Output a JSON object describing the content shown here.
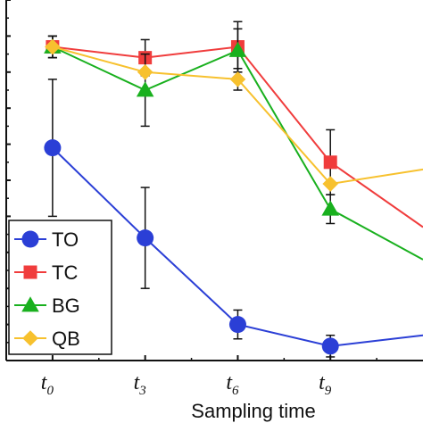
{
  "chart_data": {
    "type": "line",
    "title": "",
    "xlabel": "Sampling time",
    "ylabel": "",
    "categories": [
      {
        "main": "t",
        "sub": "0"
      },
      {
        "main": "t",
        "sub": "3"
      },
      {
        "main": "t",
        "sub": "6"
      },
      {
        "main": "t",
        "sub": "9"
      }
    ],
    "x": [
      0,
      3,
      6,
      9,
      12
    ],
    "xlim": [
      -1.5,
      12
    ],
    "ylim": [
      0,
      100
    ],
    "grid": false,
    "legend_position": "bottom-left",
    "series": [
      {
        "name": "TO",
        "color": "#2b3fd6",
        "marker": "circle",
        "values": [
          59,
          34,
          10,
          4,
          7
        ],
        "errors": [
          19,
          14,
          4,
          3,
          0
        ]
      },
      {
        "name": "TC",
        "color": "#f03c3c",
        "marker": "square",
        "values": [
          87,
          84,
          87,
          55,
          37
        ],
        "errors": [
          3,
          5,
          7,
          9,
          0
        ]
      },
      {
        "name": "BG",
        "color": "#19b01e",
        "marker": "triangle",
        "values": [
          87,
          75,
          86,
          42,
          28
        ],
        "errors": [
          3,
          10,
          6,
          4,
          0
        ]
      },
      {
        "name": "QB",
        "color": "#f7c12e",
        "marker": "diamond",
        "values": [
          87,
          80,
          78,
          49,
          53
        ],
        "errors": [
          3,
          0,
          3,
          0,
          0
        ]
      }
    ]
  }
}
